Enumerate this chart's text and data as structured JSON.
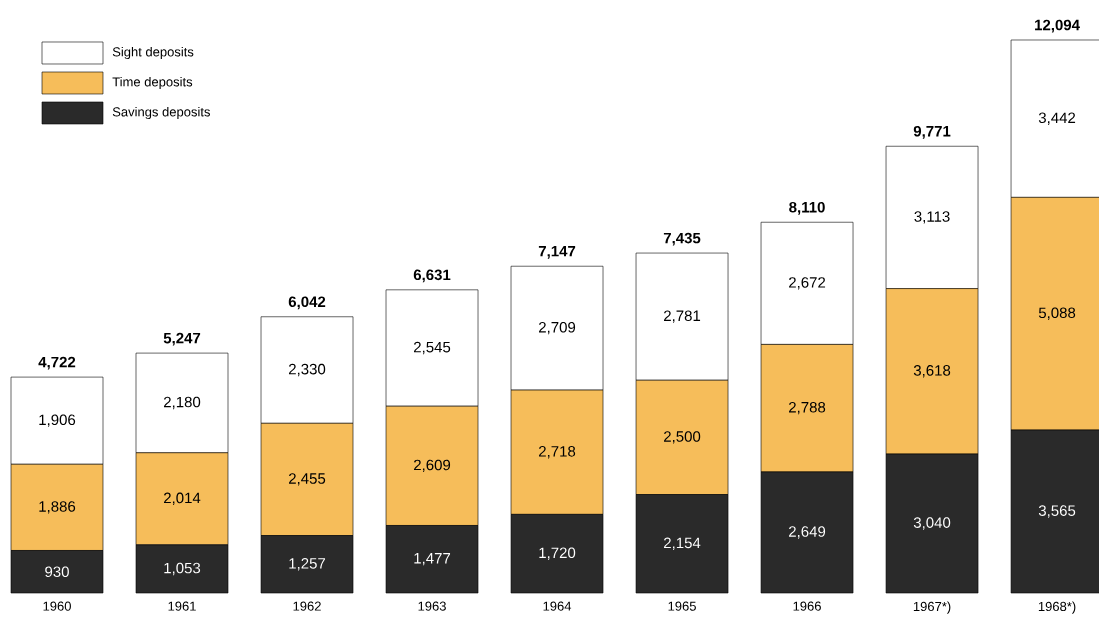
{
  "chart_data": {
    "type": "bar",
    "stacked": true,
    "legend": "top left",
    "categories": [
      "1960",
      "1961",
      "1962",
      "1963",
      "1964",
      "1965",
      "1966",
      "1967*)",
      "1968*)"
    ],
    "series": [
      {
        "name": "Savings deposits",
        "color": "#2a2a2a",
        "values": [
          930,
          1053,
          1257,
          1477,
          1720,
          2154,
          2649,
          3040,
          3565
        ],
        "value_labels": [
          "930",
          "1,053",
          "1,257",
          "1,477",
          "1,720",
          "2,154",
          "2,649",
          "3,040",
          "3,565"
        ]
      },
      {
        "name": "Time deposits",
        "color": "#f6bd5a",
        "values": [
          1886,
          2014,
          2455,
          2609,
          2718,
          2500,
          2788,
          3618,
          5088
        ],
        "value_labels": [
          "1,886",
          "2,014",
          "2,455",
          "2,609",
          "2,718",
          "2,500",
          "2,788",
          "3,618",
          "5,088"
        ]
      },
      {
        "name": "Sight deposits",
        "color": "#ffffff",
        "values": [
          1906,
          2180,
          2330,
          2545,
          2709,
          2781,
          2672,
          3113,
          3442
        ],
        "value_labels": [
          "1,906",
          "2,180",
          "2,330",
          "2,545",
          "2,709",
          "2,781",
          "2,672",
          "3,113",
          "3,442"
        ]
      }
    ],
    "totals": [
      "4,722",
      "5,247",
      "6,042",
      "6,631",
      "7,147",
      "7,435",
      "8,110",
      "9,771",
      "12,094"
    ]
  }
}
